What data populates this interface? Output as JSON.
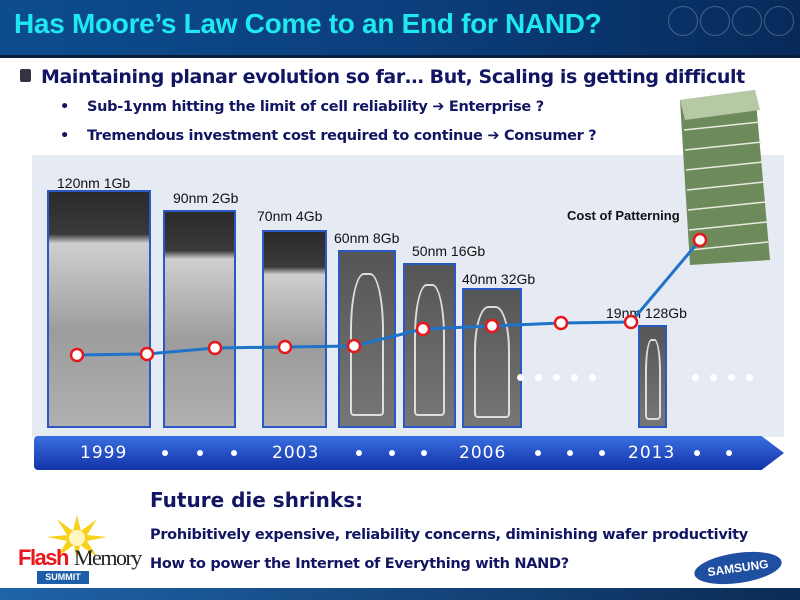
{
  "header": {
    "title": "Has Moore’s Law Come to an End for NAND?"
  },
  "bullets": {
    "main": "Maintaining planar evolution so far… But, Scaling is getting difficult",
    "sub": [
      {
        "text": "Sub-1ynm hitting the limit of cell reliability",
        "arrow": "➔",
        "target": "Enterprise ?"
      },
      {
        "text": "Tremendous investment cost required to continue",
        "arrow": "➔",
        "target": "Consumer ?"
      }
    ]
  },
  "figure": {
    "cells": [
      "120nm 1Gb",
      "90nm 2Gb",
      "70nm 4Gb",
      "60nm 8Gb",
      "50nm 16Gb",
      "40nm 32Gb",
      "19nm 128Gb"
    ],
    "cost_label": "Cost of Patterning",
    "line_color": "#1f73c8",
    "marker_color": "#e8161d"
  },
  "timeline": {
    "years": [
      "1999",
      "2003",
      "2006",
      "2013"
    ]
  },
  "future": {
    "heading": "Future die shrinks:",
    "lines": [
      "Prohibitively expensive, reliability concerns, diminishing wafer productivity",
      "How to power the Internet of Everything with NAND?"
    ]
  },
  "logos": {
    "flash": "Flash",
    "memory": "Memory",
    "summit": "SUMMIT",
    "samsung": "SAMSUNG"
  }
}
